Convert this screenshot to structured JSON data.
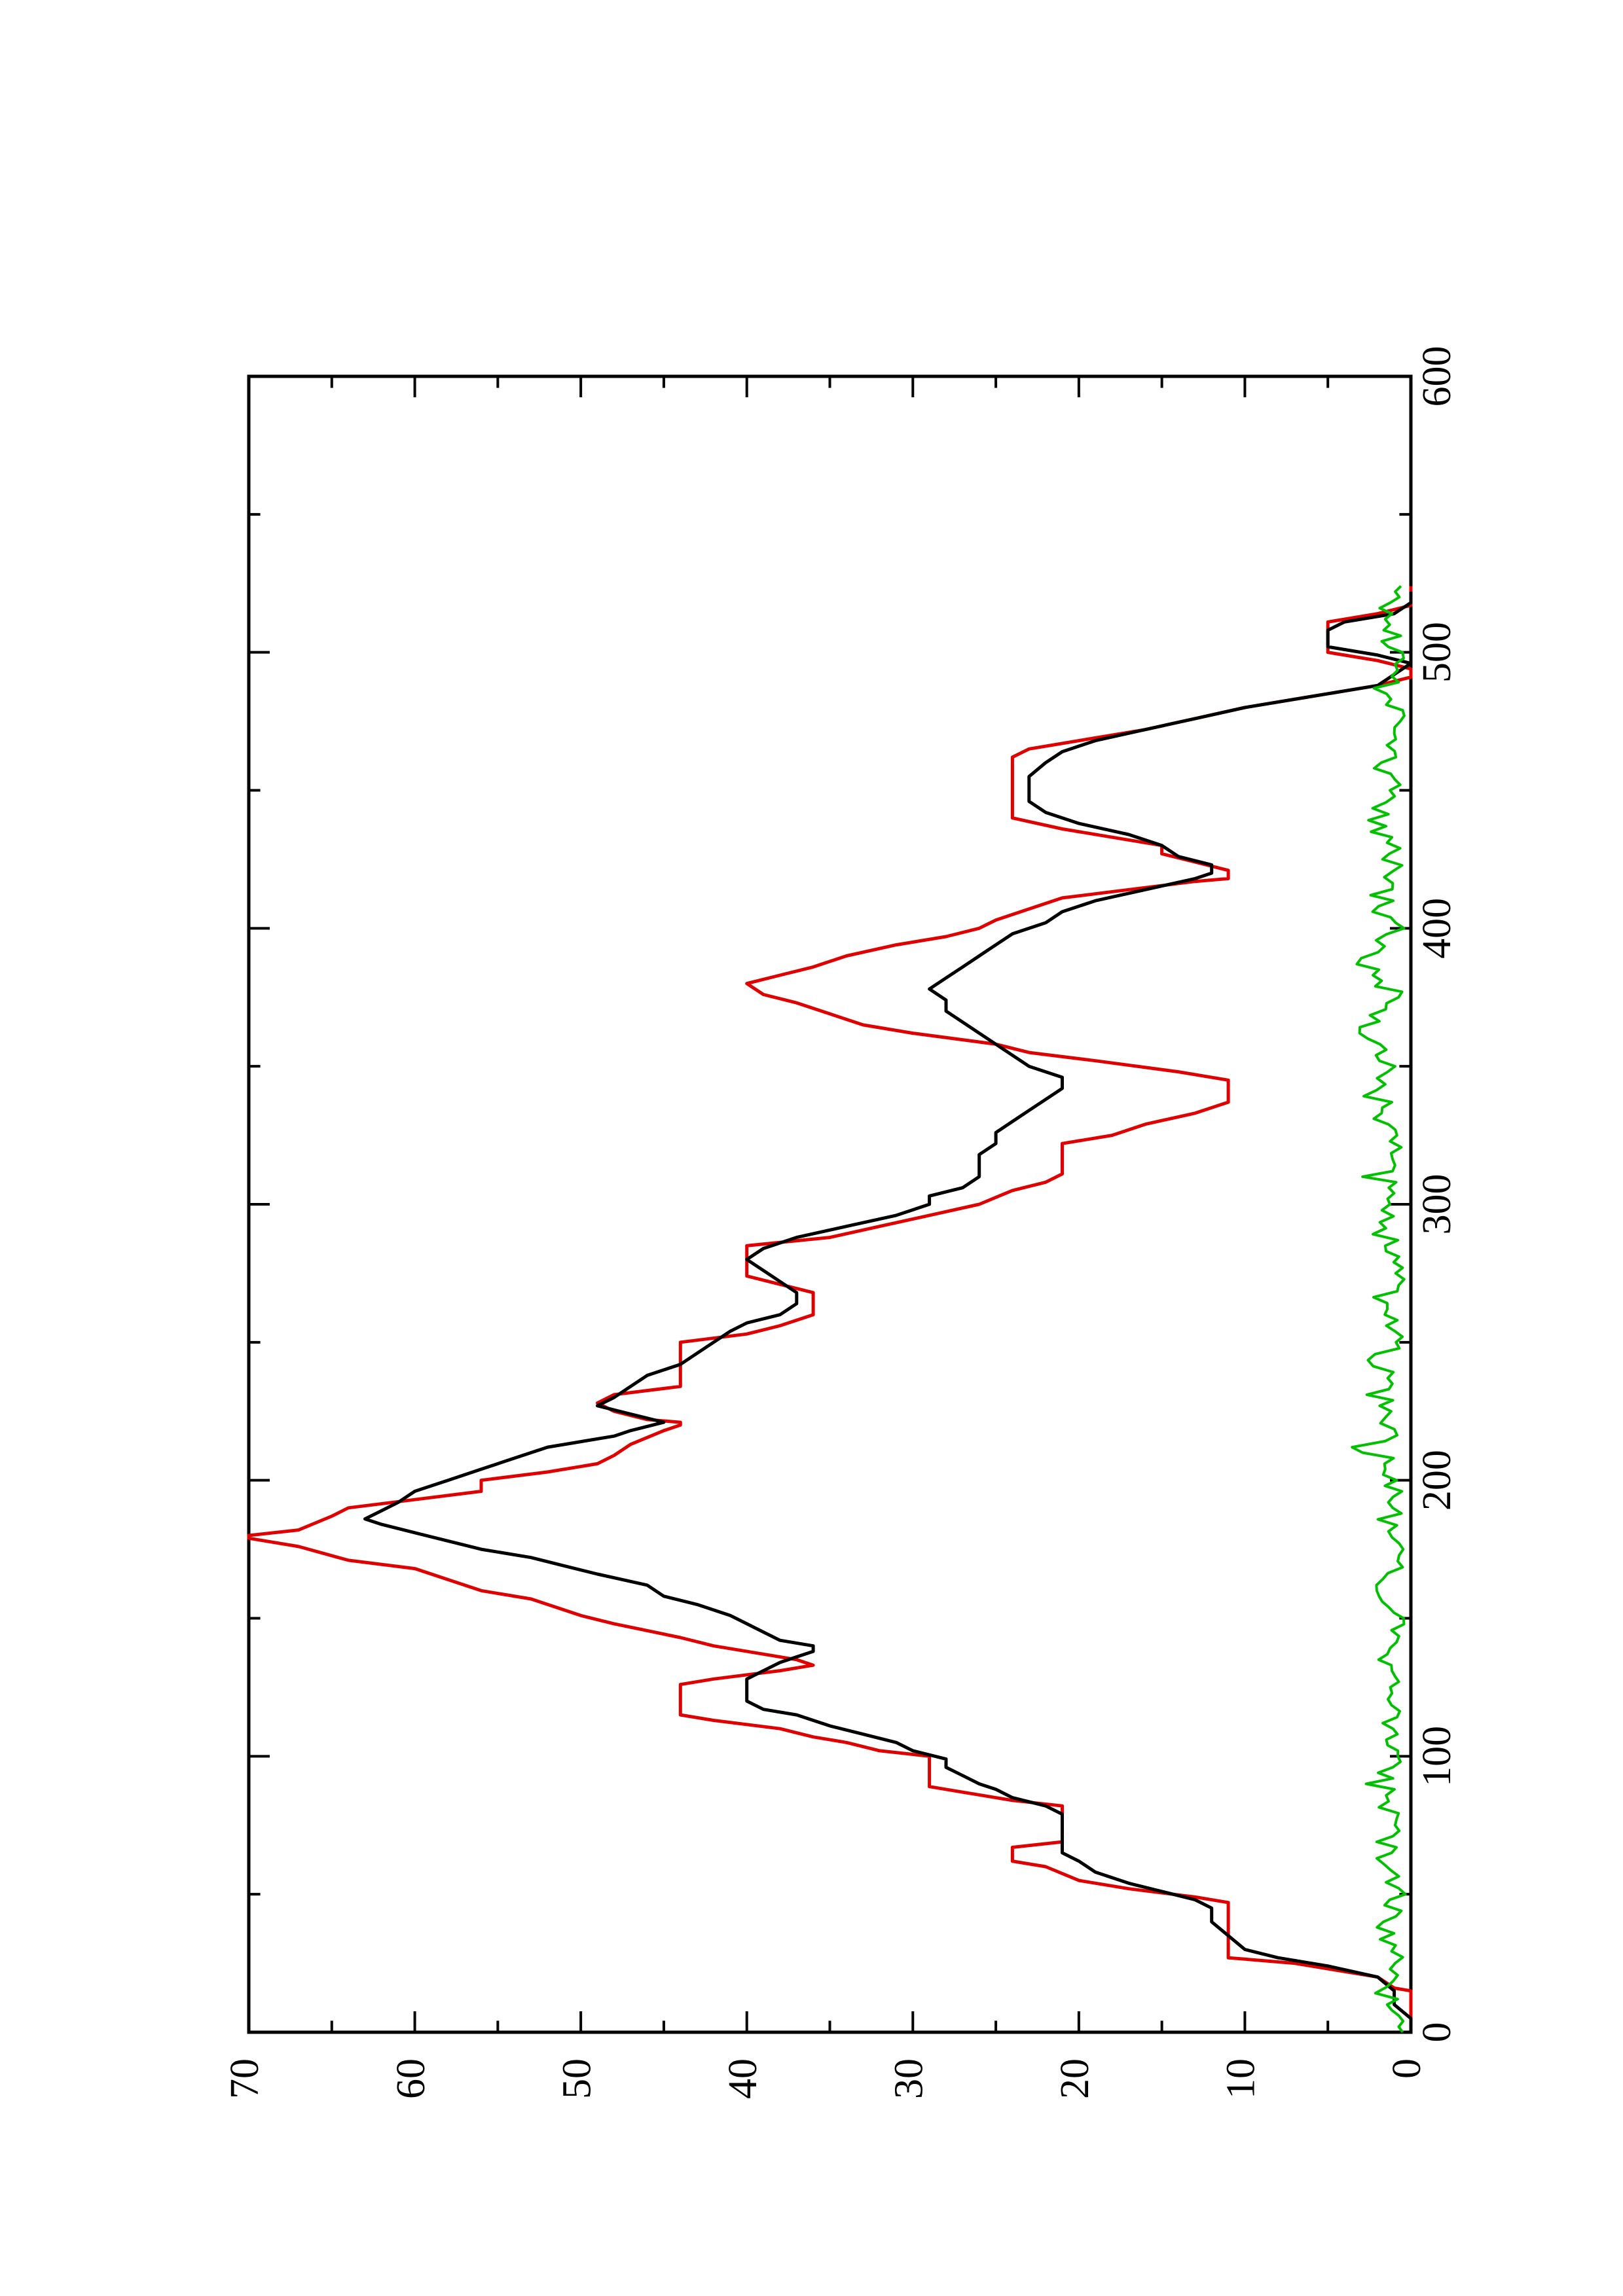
{
  "chart_data": {
    "type": "line",
    "orientation": "rotated-90-ccw",
    "title": "",
    "xlabel": "",
    "ylabel": "",
    "xlim": [
      0,
      600
    ],
    "ylim": [
      0,
      70
    ],
    "x_ticks": [
      "0",
      "100",
      "200",
      "300",
      "400",
      "500",
      "600"
    ],
    "y_ticks": [
      "0",
      "10",
      "20",
      "30",
      "40",
      "50",
      "60",
      "70"
    ],
    "grid": false,
    "legend": "none",
    "series": [
      {
        "color": "#e00000",
        "style": "step",
        "points": [
          [
            0,
            0
          ],
          [
            15,
            0
          ],
          [
            16,
            1
          ],
          [
            20,
            2
          ],
          [
            25,
            7
          ],
          [
            27,
            11
          ],
          [
            47,
            11
          ],
          [
            49,
            13
          ],
          [
            52,
            17
          ],
          [
            55,
            20
          ],
          [
            60,
            22
          ],
          [
            62,
            24
          ],
          [
            67,
            24
          ],
          [
            69,
            21
          ],
          [
            82,
            21
          ],
          [
            84,
            24
          ],
          [
            87,
            27
          ],
          [
            89,
            29
          ],
          [
            100,
            29
          ],
          [
            102,
            32
          ],
          [
            105,
            34
          ],
          [
            107,
            36
          ],
          [
            110,
            38
          ],
          [
            113,
            42
          ],
          [
            115,
            44
          ],
          [
            126,
            44
          ],
          [
            128,
            42
          ],
          [
            131,
            38
          ],
          [
            133,
            36
          ],
          [
            135,
            37
          ],
          [
            137,
            39
          ],
          [
            140,
            42
          ],
          [
            143,
            44
          ],
          [
            148,
            48
          ],
          [
            151,
            50
          ],
          [
            157,
            53
          ],
          [
            160,
            56
          ],
          [
            168,
            60
          ],
          [
            171,
            64
          ],
          [
            176,
            67
          ],
          [
            179,
            70
          ],
          [
            180,
            70
          ],
          [
            182,
            67
          ],
          [
            187,
            65
          ],
          [
            190,
            64
          ],
          [
            193,
            60
          ],
          [
            196,
            56
          ],
          [
            200,
            56
          ],
          [
            203,
            52
          ],
          [
            206,
            49
          ],
          [
            209,
            48
          ],
          [
            213,
            47
          ],
          [
            218,
            45
          ],
          [
            220,
            44
          ],
          [
            221,
            44
          ],
          [
            222,
            46
          ],
          [
            225,
            48
          ],
          [
            228,
            49
          ],
          [
            231,
            48
          ],
          [
            234,
            44
          ],
          [
            250,
            44
          ],
          [
            253,
            40
          ],
          [
            256,
            38
          ],
          [
            260,
            36
          ],
          [
            268,
            36
          ],
          [
            271,
            38
          ],
          [
            274,
            40
          ],
          [
            285,
            40
          ],
          [
            288,
            35
          ],
          [
            292,
            32
          ],
          [
            296,
            29
          ],
          [
            300,
            26
          ],
          [
            305,
            24
          ],
          [
            308,
            22
          ],
          [
            311,
            21
          ],
          [
            322,
            21
          ],
          [
            325,
            18
          ],
          [
            329,
            16
          ],
          [
            333,
            13
          ],
          [
            337,
            11
          ],
          [
            345,
            11
          ],
          [
            348,
            14
          ],
          [
            352,
            19
          ],
          [
            355,
            23
          ],
          [
            358,
            25
          ],
          [
            362,
            30
          ],
          [
            365,
            33
          ],
          [
            369,
            35
          ],
          [
            373,
            37
          ],
          [
            376,
            39
          ],
          [
            380,
            40
          ],
          [
            383,
            38
          ],
          [
            386,
            36
          ],
          [
            390,
            34
          ],
          [
            394,
            31
          ],
          [
            397,
            28
          ],
          [
            400,
            26
          ],
          [
            403,
            25
          ],
          [
            407,
            23
          ],
          [
            411,
            21
          ],
          [
            414,
            17
          ],
          [
            417,
            13
          ],
          [
            418,
            11
          ],
          [
            421,
            11
          ],
          [
            424,
            13
          ],
          [
            427,
            15
          ],
          [
            430,
            15
          ],
          [
            433,
            18
          ],
          [
            436,
            21
          ],
          [
            440,
            24
          ],
          [
            462,
            24
          ],
          [
            465,
            23
          ],
          [
            468,
            20
          ],
          [
            472,
            16
          ],
          [
            476,
            13
          ],
          [
            480,
            10
          ],
          [
            484,
            6
          ],
          [
            488,
            2
          ],
          [
            491,
            0
          ],
          [
            494,
            0
          ],
          [
            497,
            2
          ],
          [
            500,
            5
          ],
          [
            511,
            5
          ],
          [
            514,
            2
          ],
          [
            517,
            0
          ],
          [
            524,
            0
          ]
        ]
      },
      {
        "color": "#000000",
        "style": "line",
        "points": [
          [
            0,
            0
          ],
          [
            5,
            0
          ],
          [
            10,
            1
          ],
          [
            15,
            1
          ],
          [
            20,
            2
          ],
          [
            24,
            5
          ],
          [
            27,
            8
          ],
          [
            30,
            10
          ],
          [
            35,
            11
          ],
          [
            40,
            12
          ],
          [
            45,
            12
          ],
          [
            48,
            13
          ],
          [
            51,
            15
          ],
          [
            54,
            17
          ],
          [
            58,
            19
          ],
          [
            62,
            20
          ],
          [
            65,
            21
          ],
          [
            68,
            21
          ],
          [
            72,
            21
          ],
          [
            76,
            21
          ],
          [
            79,
            21
          ],
          [
            82,
            22
          ],
          [
            85,
            24
          ],
          [
            88,
            25
          ],
          [
            90,
            26
          ],
          [
            93,
            27
          ],
          [
            96,
            28
          ],
          [
            99,
            28
          ],
          [
            102,
            30
          ],
          [
            105,
            31
          ],
          [
            108,
            33
          ],
          [
            111,
            35
          ],
          [
            113,
            36
          ],
          [
            115,
            37
          ],
          [
            117,
            39
          ],
          [
            120,
            40
          ],
          [
            124,
            40
          ],
          [
            128,
            40
          ],
          [
            131,
            39
          ],
          [
            134,
            38
          ],
          [
            136,
            37
          ],
          [
            138,
            36
          ],
          [
            140,
            36
          ],
          [
            142,
            38
          ],
          [
            145,
            39
          ],
          [
            148,
            40
          ],
          [
            151,
            41
          ],
          [
            155,
            43
          ],
          [
            158,
            45
          ],
          [
            162,
            46
          ],
          [
            166,
            49
          ],
          [
            169,
            51
          ],
          [
            172,
            53
          ],
          [
            175,
            56
          ],
          [
            178,
            58
          ],
          [
            181,
            60
          ],
          [
            184,
            62
          ],
          [
            186,
            63
          ],
          [
            189,
            62
          ],
          [
            192,
            61
          ],
          [
            196,
            60
          ],
          [
            200,
            58
          ],
          [
            204,
            56
          ],
          [
            208,
            54
          ],
          [
            212,
            52
          ],
          [
            216,
            48
          ],
          [
            218,
            47
          ],
          [
            221,
            45
          ],
          [
            224,
            47
          ],
          [
            227,
            49
          ],
          [
            230,
            48
          ],
          [
            234,
            47
          ],
          [
            238,
            46
          ],
          [
            242,
            44
          ],
          [
            246,
            43
          ],
          [
            250,
            42
          ],
          [
            254,
            41
          ],
          [
            257,
            40
          ],
          [
            260,
            38
          ],
          [
            264,
            37
          ],
          [
            268,
            37
          ],
          [
            272,
            38
          ],
          [
            276,
            39
          ],
          [
            280,
            40
          ],
          [
            284,
            39
          ],
          [
            288,
            37
          ],
          [
            292,
            34
          ],
          [
            296,
            31
          ],
          [
            300,
            29
          ],
          [
            303,
            29
          ],
          [
            306,
            27
          ],
          [
            310,
            26
          ],
          [
            314,
            26
          ],
          [
            318,
            26
          ],
          [
            322,
            25
          ],
          [
            326,
            25
          ],
          [
            330,
            24
          ],
          [
            334,
            23
          ],
          [
            338,
            22
          ],
          [
            342,
            21
          ],
          [
            346,
            21
          ],
          [
            350,
            23
          ],
          [
            354,
            24
          ],
          [
            358,
            25
          ],
          [
            362,
            26
          ],
          [
            366,
            27
          ],
          [
            370,
            28
          ],
          [
            374,
            28
          ],
          [
            378,
            29
          ],
          [
            382,
            28
          ],
          [
            386,
            27
          ],
          [
            390,
            26
          ],
          [
            394,
            25
          ],
          [
            398,
            24
          ],
          [
            402,
            22
          ],
          [
            406,
            21
          ],
          [
            410,
            19
          ],
          [
            414,
            16
          ],
          [
            418,
            13
          ],
          [
            420,
            12
          ],
          [
            423,
            12
          ],
          [
            426,
            14
          ],
          [
            430,
            15
          ],
          [
            434,
            17
          ],
          [
            438,
            20
          ],
          [
            442,
            22
          ],
          [
            446,
            23
          ],
          [
            450,
            23
          ],
          [
            455,
            23
          ],
          [
            460,
            22
          ],
          [
            464,
            21
          ],
          [
            468,
            19
          ],
          [
            472,
            16
          ],
          [
            476,
            13
          ],
          [
            480,
            10
          ],
          [
            484,
            6
          ],
          [
            488,
            2
          ],
          [
            492,
            1
          ],
          [
            496,
            0
          ],
          [
            499,
            2
          ],
          [
            502,
            5
          ],
          [
            505,
            5
          ],
          [
            508,
            5
          ],
          [
            511,
            4
          ],
          [
            514,
            1
          ],
          [
            518,
            0
          ],
          [
            522,
            0
          ]
        ]
      },
      {
        "color": "#00c000",
        "style": "noise",
        "points": [
          [
            0,
            0.5
          ],
          [
            12,
            1.6
          ],
          [
            25,
            0.8
          ],
          [
            38,
            1.9
          ],
          [
            50,
            0.6
          ],
          [
            63,
            1.7
          ],
          [
            75,
            0.9
          ],
          [
            88,
            2.0
          ],
          [
            100,
            0.7
          ],
          [
            112,
            1.8
          ],
          [
            125,
            0.8
          ],
          [
            137,
            1.5
          ],
          [
            150,
            0.6
          ],
          [
            162,
            1.6
          ],
          [
            175,
            0.7
          ],
          [
            188,
            1.4
          ],
          [
            200,
            0.9
          ],
          [
            212,
            2.4
          ],
          [
            225,
            1.0
          ],
          [
            237,
            2.8
          ],
          [
            250,
            0.9
          ],
          [
            262,
            2.1
          ],
          [
            275,
            0.8
          ],
          [
            287,
            1.9
          ],
          [
            300,
            1.0
          ],
          [
            312,
            2.2
          ],
          [
            325,
            0.9
          ],
          [
            337,
            2.1
          ],
          [
            350,
            1.0
          ],
          [
            362,
            2.3
          ],
          [
            375,
            0.8
          ],
          [
            387,
            2.5
          ],
          [
            400,
            0.9
          ],
          [
            412,
            2.0
          ],
          [
            425,
            1.1
          ],
          [
            437,
            2.2
          ],
          [
            450,
            0.9
          ],
          [
            462,
            1.8
          ],
          [
            475,
            0.8
          ],
          [
            487,
            1.5
          ],
          [
            500,
            0.9
          ],
          [
            512,
            1.9
          ],
          [
            524,
            0.6
          ]
        ]
      }
    ]
  }
}
